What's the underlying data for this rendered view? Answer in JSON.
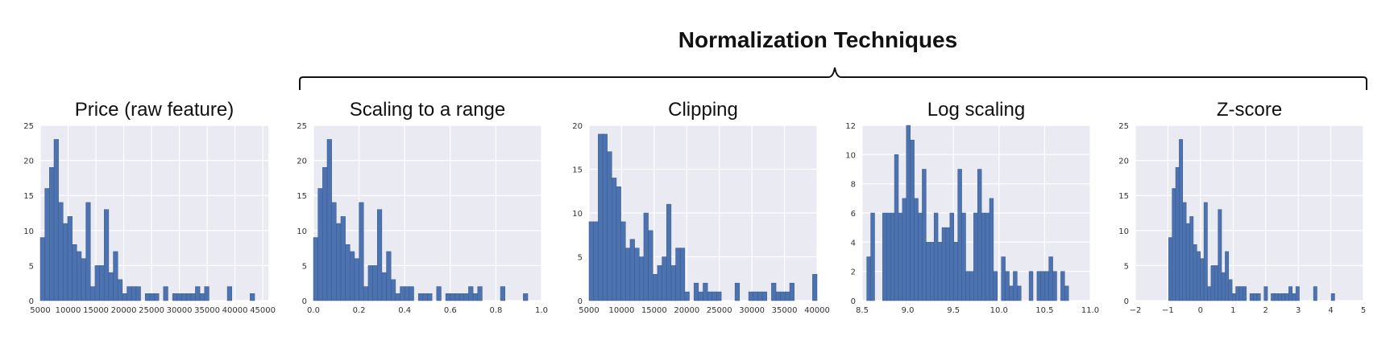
{
  "title": "Normalization Techniques",
  "chart_data": [
    {
      "type": "histogram",
      "title": "Price (raw feature)",
      "xlim": [
        5000,
        46000
      ],
      "ylim": [
        0,
        25
      ],
      "xticks": [
        5000,
        10000,
        15000,
        20000,
        25000,
        30000,
        35000,
        40000,
        45000
      ],
      "xtick_labels": [
        "5000",
        "10000",
        "15000",
        "20000",
        "25000",
        "30000",
        "35000",
        "40000",
        "45000"
      ],
      "yticks": [
        0,
        5,
        10,
        15,
        20,
        25
      ],
      "ytick_labels": [
        "0",
        "5",
        "10",
        "15",
        "20",
        "25"
      ],
      "bin_start": 5000,
      "bin_width": 820,
      "counts": [
        9,
        16,
        19,
        23,
        14,
        11,
        12,
        8,
        7,
        6,
        14,
        2,
        5,
        5,
        13,
        4,
        7,
        3,
        1,
        2,
        2,
        2,
        0,
        1,
        1,
        1,
        0,
        2,
        0,
        1,
        1,
        1,
        1,
        1,
        2,
        1,
        2,
        0,
        0,
        0,
        0,
        2,
        0,
        0,
        0,
        0,
        1
      ]
    },
    {
      "type": "histogram",
      "title": "Scaling to a range",
      "xlim": [
        0,
        1
      ],
      "ylim": [
        0,
        25
      ],
      "xticks": [
        0,
        0.2,
        0.4,
        0.6,
        0.8,
        1.0
      ],
      "xtick_labels": [
        "0.0",
        "0.2",
        "0.4",
        "0.6",
        "0.8",
        "1.0"
      ],
      "yticks": [
        0,
        5,
        10,
        15,
        20,
        25
      ],
      "ytick_labels": [
        "0",
        "5",
        "10",
        "15",
        "20",
        "25"
      ],
      "bin_start": 0,
      "bin_width": 0.02,
      "counts": [
        9,
        16,
        19,
        23,
        14,
        11,
        12,
        8,
        7,
        6,
        14,
        2,
        5,
        5,
        13,
        4,
        7,
        3,
        1,
        2,
        2,
        2,
        0,
        1,
        1,
        1,
        0,
        2,
        0,
        1,
        1,
        1,
        1,
        1,
        2,
        1,
        2,
        0,
        0,
        0,
        0,
        2,
        0,
        0,
        0,
        0,
        1
      ]
    },
    {
      "type": "histogram",
      "title": "Clipping",
      "xlim": [
        5000,
        40000
      ],
      "ylim": [
        0,
        20
      ],
      "xticks": [
        5000,
        10000,
        15000,
        20000,
        25000,
        30000,
        35000,
        40000
      ],
      "xtick_labels": [
        "5000",
        "10000",
        "15000",
        "20000",
        "25000",
        "30000",
        "35000",
        "40000"
      ],
      "yticks": [
        0,
        5,
        10,
        15,
        20
      ],
      "ytick_labels": [
        "0",
        "5",
        "10",
        "15",
        "20"
      ],
      "bin_start": 5000,
      "bin_width": 700,
      "counts": [
        9,
        9,
        19,
        19,
        17,
        14,
        13,
        9,
        6,
        7,
        6,
        5,
        10,
        8,
        3,
        4,
        5,
        11,
        4,
        6,
        6,
        1,
        0,
        2,
        1,
        2,
        1,
        1,
        1,
        0,
        0,
        0,
        2,
        0,
        0,
        1,
        1,
        1,
        1,
        0,
        2,
        1,
        1,
        1,
        2,
        0,
        0,
        0,
        0,
        3
      ]
    },
    {
      "type": "histogram",
      "title": "Log scaling",
      "xlim": [
        8.5,
        11.0
      ],
      "ylim": [
        0,
        12
      ],
      "xticks": [
        8.5,
        9.0,
        9.5,
        10.0,
        10.5,
        11.0
      ],
      "xtick_labels": [
        "8.5",
        "9.0",
        "9.5",
        "10.0",
        "10.5",
        "11.0"
      ],
      "yticks": [
        0,
        2,
        4,
        6,
        8,
        10,
        12
      ],
      "ytick_labels": [
        "0",
        "2",
        "4",
        "6",
        "8",
        "10",
        "12"
      ],
      "bin_start": 8.55,
      "bin_width": 0.0434,
      "counts": [
        3,
        6,
        0,
        0,
        6,
        6,
        6,
        10,
        6,
        7,
        12,
        11,
        7,
        6,
        9,
        4,
        4,
        6,
        4,
        5,
        5,
        6,
        4,
        9,
        6,
        2,
        2,
        6,
        9,
        6,
        6,
        7,
        2,
        0,
        3,
        2,
        1,
        2,
        1,
        0,
        0,
        2,
        0,
        2,
        2,
        2,
        3,
        2,
        0,
        2,
        1
      ]
    },
    {
      "type": "histogram",
      "title": "Z-score",
      "xlim": [
        -2,
        5
      ],
      "ylim": [
        0,
        25
      ],
      "xticks": [
        -2,
        -1,
        0,
        1,
        2,
        3,
        4,
        5
      ],
      "xtick_labels": [
        "−2",
        "−1",
        "0",
        "1",
        "2",
        "3",
        "4",
        "5"
      ],
      "yticks": [
        0,
        5,
        10,
        15,
        20,
        25
      ],
      "ytick_labels": [
        "0",
        "5",
        "10",
        "15",
        "20",
        "25"
      ],
      "bin_start": -0.98,
      "bin_width": 0.1085,
      "counts": [
        9,
        16,
        19,
        23,
        14,
        11,
        12,
        8,
        7,
        6,
        14,
        2,
        5,
        5,
        13,
        4,
        7,
        3,
        1,
        2,
        2,
        2,
        0,
        1,
        1,
        1,
        0,
        2,
        0,
        1,
        1,
        1,
        1,
        1,
        2,
        1,
        2,
        0,
        0,
        0,
        0,
        2,
        0,
        0,
        0,
        0,
        1
      ]
    }
  ]
}
